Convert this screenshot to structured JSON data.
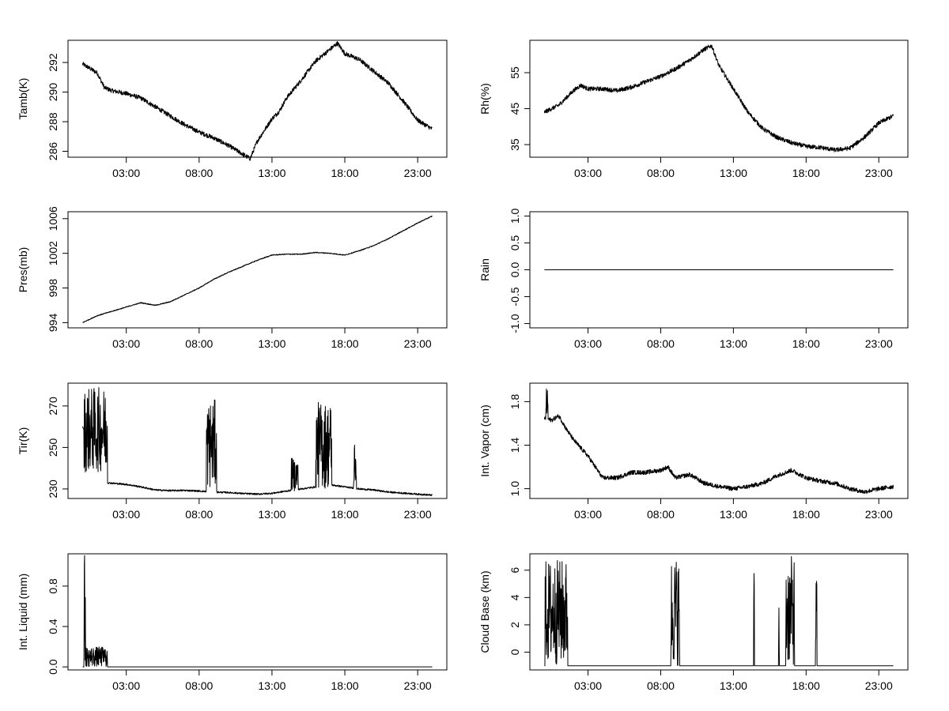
{
  "figure": {
    "line_color": "#000000",
    "background": "#ffffff"
  },
  "chart_data": [
    {
      "type": "line",
      "ylabel": "Tamb(K)",
      "x_unit": "hour of day",
      "x_ticks": [
        3,
        8,
        13,
        18,
        23
      ],
      "x_tick_labels": [
        "03:00",
        "08:00",
        "13:00",
        "18:00",
        "23:00"
      ],
      "xlim": [
        -1,
        25
      ],
      "ylim": [
        285.6,
        293.5
      ],
      "y_ticks": [
        286,
        288,
        290,
        292
      ],
      "y_tick_labels": [
        "286",
        "288",
        "290",
        "292"
      ],
      "grid": false,
      "noise": 0.15,
      "series": [
        {
          "x": [
            0,
            0.5,
            1,
            1.5,
            2,
            3,
            4,
            5,
            6,
            7,
            8,
            9,
            10,
            11,
            11.5,
            12,
            13,
            13.5,
            14,
            15,
            16,
            17,
            17.5,
            18,
            19,
            20,
            21,
            22,
            23,
            24
          ],
          "y": [
            291.9,
            291.6,
            291.3,
            290.3,
            290.1,
            289.9,
            289.6,
            289.0,
            288.4,
            287.8,
            287.3,
            286.9,
            286.4,
            285.8,
            285.5,
            286.7,
            288.2,
            288.7,
            289.6,
            290.8,
            292.1,
            292.9,
            293.3,
            292.6,
            292.2,
            291.4,
            290.6,
            289.4,
            288.1,
            287.5
          ]
        }
      ]
    },
    {
      "type": "line",
      "ylabel": "Rh(%)",
      "x_unit": "hour of day",
      "x_ticks": [
        3,
        8,
        13,
        18,
        23
      ],
      "x_tick_labels": [
        "03:00",
        "08:00",
        "13:00",
        "18:00",
        "23:00"
      ],
      "xlim": [
        -1,
        25
      ],
      "ylim": [
        31.5,
        64
      ],
      "y_ticks": [
        35,
        45,
        55
      ],
      "y_tick_labels": [
        "35",
        "45",
        "55"
      ],
      "grid": false,
      "noise": 0.6,
      "series": [
        {
          "x": [
            0,
            1,
            2,
            2.5,
            3,
            4,
            5,
            6,
            7,
            8,
            9,
            10,
            11,
            11.5,
            12,
            13,
            14,
            15,
            16,
            17,
            18,
            19,
            20,
            21,
            22,
            23,
            24
          ],
          "y": [
            44,
            46,
            50,
            51.5,
            50.5,
            50.5,
            50,
            51,
            52.5,
            54,
            56,
            58.5,
            61.5,
            62.5,
            57,
            50.5,
            44,
            39.5,
            37,
            35.5,
            34.5,
            34.2,
            33.5,
            34,
            37,
            41,
            43
          ]
        }
      ]
    },
    {
      "type": "line",
      "ylabel": "Pres(mb)",
      "x_unit": "hour of day",
      "x_ticks": [
        3,
        8,
        13,
        18,
        23
      ],
      "x_tick_labels": [
        "03:00",
        "08:00",
        "13:00",
        "18:00",
        "23:00"
      ],
      "xlim": [
        -1,
        25
      ],
      "ylim": [
        993.4,
        1006.8
      ],
      "y_ticks": [
        994,
        998,
        1002,
        1006
      ],
      "y_tick_labels": [
        "994",
        "998",
        "1002",
        "1006"
      ],
      "grid": false,
      "noise": 0.05,
      "series": [
        {
          "x": [
            0,
            1,
            2,
            3,
            4,
            5,
            6,
            7,
            8,
            9,
            10,
            11,
            12,
            13,
            14,
            15,
            16,
            17,
            18,
            19,
            20,
            21,
            22,
            23,
            24
          ],
          "y": [
            994.0,
            994.8,
            995.3,
            995.8,
            996.3,
            996.0,
            996.4,
            997.2,
            998.0,
            999.0,
            999.8,
            1000.5,
            1001.2,
            1001.8,
            1001.9,
            1001.9,
            1002.1,
            1002.0,
            1001.8,
            1002.3,
            1002.9,
            1003.7,
            1004.6,
            1005.5,
            1006.3
          ]
        }
      ]
    },
    {
      "type": "line",
      "ylabel": "Rain",
      "x_unit": "hour of day",
      "x_ticks": [
        3,
        8,
        13,
        18,
        23
      ],
      "x_tick_labels": [
        "03:00",
        "08:00",
        "13:00",
        "18:00",
        "23:00"
      ],
      "xlim": [
        -1,
        25
      ],
      "ylim": [
        -1.08,
        1.08
      ],
      "y_ticks": [
        -1.0,
        -0.5,
        0.0,
        0.5,
        1.0
      ],
      "y_tick_labels": [
        "-1.0",
        "-0.5",
        "0.0",
        "0.5",
        "1.0"
      ],
      "grid": false,
      "noise": 0,
      "series": [
        {
          "x": [
            0,
            24
          ],
          "y": [
            0,
            0
          ]
        }
      ]
    },
    {
      "type": "line",
      "ylabel": "Tir(K)",
      "x_unit": "hour of day",
      "x_ticks": [
        3,
        8,
        13,
        18,
        23
      ],
      "x_tick_labels": [
        "03:00",
        "08:00",
        "13:00",
        "18:00",
        "23:00"
      ],
      "xlim": [
        -1,
        25
      ],
      "ylim": [
        225.4,
        281
      ],
      "y_ticks": [
        230,
        250,
        270
      ],
      "y_tick_labels": [
        "230",
        "250",
        "270"
      ],
      "grid": false,
      "noise": 0.4,
      "spikes": [
        {
          "from": 0.1,
          "to": 1.7,
          "lo": 238,
          "hi": 279
        },
        {
          "from": 8.5,
          "to": 9.2,
          "lo": 230,
          "hi": 273
        },
        {
          "from": 14.3,
          "to": 14.8,
          "lo": 229,
          "hi": 245
        },
        {
          "from": 16.0,
          "to": 17.1,
          "lo": 230,
          "hi": 272
        },
        {
          "from": 18.6,
          "to": 18.8,
          "lo": 232,
          "hi": 256
        }
      ],
      "series": [
        {
          "x": [
            0,
            1.7,
            2,
            3,
            4,
            5,
            6,
            7,
            8,
            9,
            10,
            11,
            12,
            13,
            14,
            15,
            16,
            17,
            18,
            19,
            20,
            21,
            22,
            23,
            24
          ],
          "y": [
            260,
            233,
            232.8,
            232.2,
            231,
            229.5,
            229.2,
            229.3,
            229.0,
            228.5,
            228.3,
            227.8,
            227.5,
            227.9,
            229,
            230,
            231,
            232,
            231,
            230,
            229.5,
            228.5,
            228,
            227.5,
            227
          ]
        }
      ]
    },
    {
      "type": "line",
      "ylabel": "Int. Vapor (cm)",
      "x_unit": "hour of day",
      "x_ticks": [
        3,
        8,
        13,
        18,
        23
      ],
      "x_tick_labels": [
        "03:00",
        "08:00",
        "13:00",
        "18:00",
        "23:00"
      ],
      "xlim": [
        -1,
        25
      ],
      "ylim": [
        0.91,
        1.97
      ],
      "y_ticks": [
        1.0,
        1.4,
        1.8
      ],
      "y_tick_labels": [
        "1.0",
        "1.4",
        "1.8"
      ],
      "grid": false,
      "noise": 0.02,
      "spikes": [
        {
          "from": 0.1,
          "to": 0.25,
          "lo": 1.65,
          "hi": 1.92
        }
      ],
      "series": [
        {
          "x": [
            0,
            0.5,
            1,
            1.5,
            2,
            3,
            3.5,
            4,
            5,
            6,
            7,
            8,
            8.5,
            9,
            10,
            11,
            12,
            13,
            14,
            15,
            16,
            17,
            18,
            19,
            20,
            21,
            22,
            23,
            24
          ],
          "y": [
            1.65,
            1.63,
            1.67,
            1.55,
            1.45,
            1.3,
            1.2,
            1.1,
            1.1,
            1.15,
            1.15,
            1.17,
            1.2,
            1.1,
            1.13,
            1.05,
            1.02,
            1.0,
            1.02,
            1.05,
            1.12,
            1.17,
            1.1,
            1.07,
            1.05,
            1.0,
            0.97,
            1.0,
            1.02
          ]
        }
      ]
    },
    {
      "type": "line",
      "ylabel": "Int. Liquid (mm)",
      "x_unit": "hour of day",
      "x_ticks": [
        3,
        8,
        13,
        18,
        23
      ],
      "x_tick_labels": [
        "03:00",
        "08:00",
        "13:00",
        "18:00",
        "23:00"
      ],
      "xlim": [
        -1,
        25
      ],
      "ylim": [
        -0.03,
        1.12
      ],
      "y_ticks": [
        0.0,
        0.4,
        0.8
      ],
      "y_tick_labels": [
        "0.0",
        "0.4",
        "0.8"
      ],
      "grid": false,
      "noise": 0,
      "spikes": [
        {
          "from": 0.1,
          "to": 0.2,
          "lo": 0,
          "hi": 1.12
        },
        {
          "from": 0.2,
          "to": 1.7,
          "lo": 0,
          "hi": 0.2
        }
      ],
      "series": [
        {
          "x": [
            0,
            24
          ],
          "y": [
            0,
            0
          ]
        }
      ]
    },
    {
      "type": "line",
      "ylabel": "Cloud Base (km)",
      "x_unit": "hour of day",
      "x_ticks": [
        3,
        8,
        13,
        18,
        23
      ],
      "x_tick_labels": [
        "03:00",
        "08:00",
        "13:00",
        "18:00",
        "23:00"
      ],
      "xlim": [
        -1,
        25
      ],
      "ylim": [
        -1.3,
        7.2
      ],
      "y_ticks": [
        0,
        2,
        4,
        6
      ],
      "y_tick_labels": [
        "0",
        "2",
        "4",
        "6"
      ],
      "grid": false,
      "noise": 0,
      "spikes": [
        {
          "from": 0.05,
          "to": 1.6,
          "lo": -1,
          "hi": 6.8
        },
        {
          "from": 8.7,
          "to": 9.3,
          "lo": -1,
          "hi": 7.0
        },
        {
          "from": 14.4,
          "to": 14.45,
          "lo": -1,
          "hi": 6.3
        },
        {
          "from": 16.1,
          "to": 16.15,
          "lo": -1,
          "hi": 6.3
        },
        {
          "from": 16.6,
          "to": 17.2,
          "lo": -1,
          "hi": 7.0
        },
        {
          "from": 18.65,
          "to": 18.75,
          "lo": -1,
          "hi": 6.0
        }
      ],
      "series": [
        {
          "x": [
            0,
            24
          ],
          "y": [
            -1,
            -1
          ]
        }
      ]
    }
  ]
}
